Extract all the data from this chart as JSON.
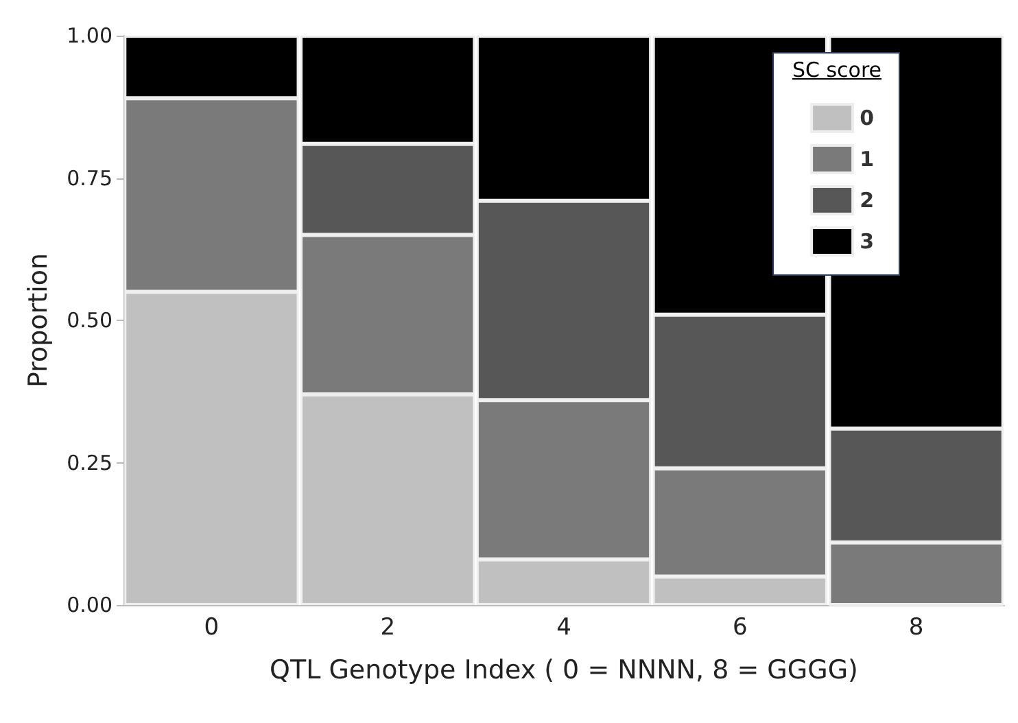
{
  "chart_data": {
    "type": "bar",
    "stacked": true,
    "xlabel": "QTL Genotype Index ( 0 = NNNN, 8 = GGGG)",
    "ylabel": "Proportion",
    "legend_title": "SC score",
    "legend": "top right",
    "grid": false,
    "categories": [
      "0",
      "2",
      "4",
      "6",
      "8"
    ],
    "series": [
      {
        "name": "0",
        "color": "#c0c0c0",
        "values": [
          0.55,
          0.37,
          0.08,
          0.05,
          0
        ]
      },
      {
        "name": "1",
        "color": "#7a7a7a",
        "values": [
          0.34,
          0.28,
          0.28,
          0.19,
          0.11
        ]
      },
      {
        "name": "2",
        "color": "#575757",
        "values": [
          0,
          0.16,
          0.35,
          0.27,
          0.2
        ]
      },
      {
        "name": "3",
        "color": "#000000",
        "values": [
          0.11,
          0.19,
          0.29,
          0.49,
          0.69
        ]
      }
    ],
    "ylim": [
      0,
      1
    ],
    "yticks": [
      {
        "value": 0,
        "label": "0.00"
      },
      {
        "value": 0.25,
        "label": "0.25"
      },
      {
        "value": 0.5,
        "label": "0.50"
      },
      {
        "value": 0.75,
        "label": "0.75"
      },
      {
        "value": 1,
        "label": "1.00"
      }
    ]
  }
}
